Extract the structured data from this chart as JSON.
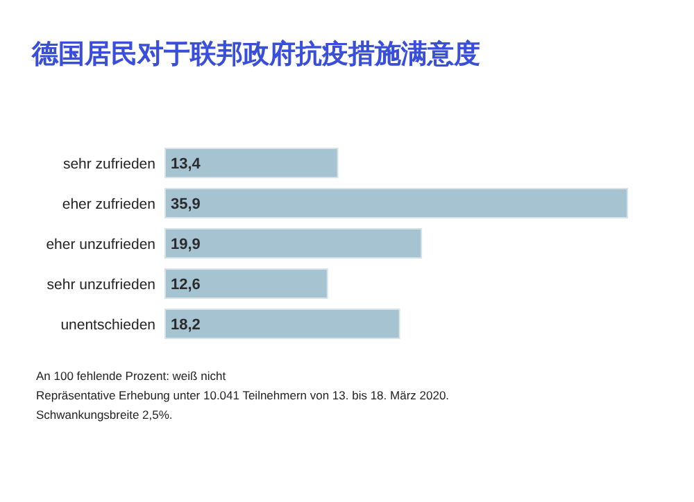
{
  "chart_data": {
    "type": "bar",
    "orientation": "horizontal",
    "title": "德国居民对于联邦政府抗疫措施满意度",
    "categories": [
      "sehr zufrieden",
      "eher zufrieden",
      "eher unzufrieden",
      "sehr unzufrieden",
      "unentschieden"
    ],
    "values": [
      13.4,
      35.9,
      19.9,
      12.6,
      18.2
    ],
    "value_labels": [
      "13,4",
      "35,9",
      "19,9",
      "12,6",
      "18,2"
    ],
    "color": "#a5c3d1",
    "annotations": [
      "An 100 fehlende Prozent: weiß nicht",
      "Repräsentative Erhebung unter 10.041 Teilnehmern von 13. bis 18. März 2020.",
      "Schwankungsbreite 2,5%."
    ]
  }
}
